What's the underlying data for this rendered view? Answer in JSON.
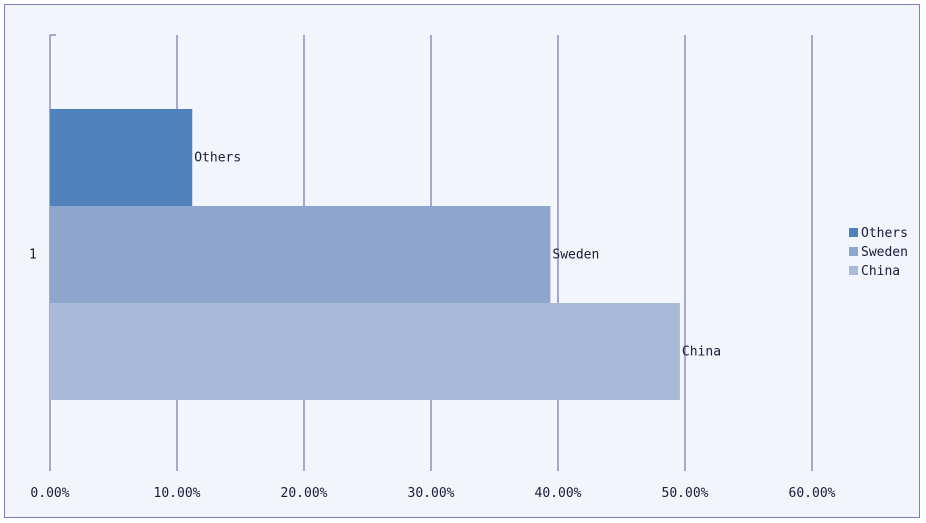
{
  "chart_data": {
    "type": "bar",
    "orientation": "horizontal",
    "categories": [
      "1"
    ],
    "series": [
      {
        "name": "Others",
        "values": [
          11.2
        ],
        "color": "#4f81bd"
      },
      {
        "name": "Sweden",
        "values": [
          39.4
        ],
        "color": "#8ea5cd"
      },
      {
        "name": "China",
        "values": [
          49.6
        ],
        "color": "#a9b9d8"
      }
    ],
    "value_axis": {
      "min": 0,
      "max": 60,
      "ticks": [
        0,
        10,
        20,
        30,
        40,
        50,
        60
      ],
      "tick_labels": [
        "0.00%",
        "10.00%",
        "20.00%",
        "30.00%",
        "40.00%",
        "50.00%",
        "60.00%"
      ]
    },
    "data_labels": [
      "Others",
      "Sweden",
      "China"
    ],
    "legend": {
      "position": "right",
      "entries": [
        "Others",
        "Sweden",
        "China"
      ]
    },
    "grid": true,
    "gridline_color": "#5b5ba8",
    "background_color": "#f2f5fb",
    "title": "",
    "xlabel": "",
    "ylabel": ""
  }
}
